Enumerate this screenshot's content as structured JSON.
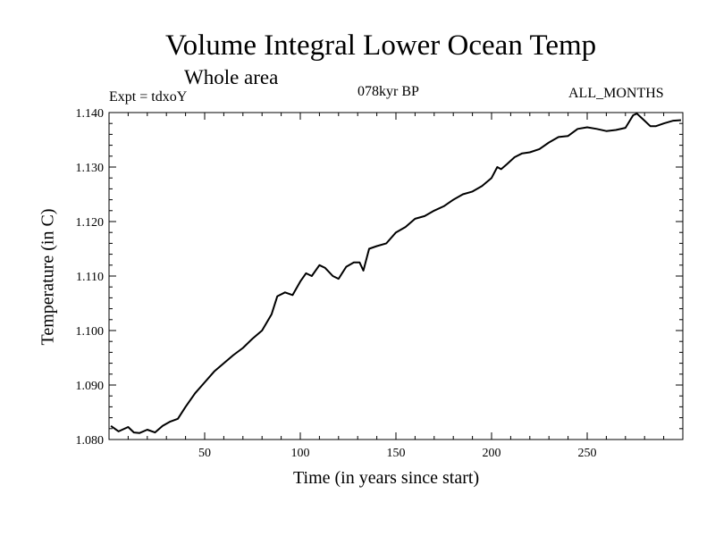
{
  "chart_data": {
    "type": "line",
    "title": "Volume Integral Lower Ocean Temp",
    "subtitle": "Whole area",
    "annotations": {
      "left": "Expt = tdxoY",
      "center": "078kyr BP",
      "right": "ALL_MONTHS"
    },
    "xlabel": "Time (in years since start)",
    "ylabel": "Temperature (in C)",
    "xlim": [
      0,
      300
    ],
    "ylim": [
      1.08,
      1.14
    ],
    "xticks": [
      50,
      100,
      150,
      200,
      250
    ],
    "xtick_labels": [
      "50",
      "100",
      "150",
      "200",
      "250"
    ],
    "yticks": [
      1.08,
      1.09,
      1.1,
      1.11,
      1.12,
      1.13,
      1.14
    ],
    "ytick_labels": [
      "1.080",
      "1.090",
      "1.100",
      "1.110",
      "1.120",
      "1.130",
      "1.140"
    ],
    "grid": false,
    "series": [
      {
        "x": [
          1,
          5,
          10,
          13,
          16,
          20,
          24,
          28,
          32,
          36,
          40,
          45,
          50,
          55,
          60,
          65,
          70,
          75,
          80,
          85,
          88,
          92,
          96,
          100,
          103,
          106,
          110,
          113,
          117,
          120,
          124,
          128,
          131,
          133,
          136,
          140,
          145,
          150,
          155,
          160,
          165,
          170,
          175,
          180,
          185,
          190,
          195,
          200,
          203,
          205,
          208,
          212,
          216,
          220,
          225,
          230,
          235,
          240,
          245,
          250,
          255,
          260,
          265,
          270,
          274,
          276,
          280,
          283,
          286,
          290,
          295,
          299
        ],
        "y": [
          1.0825,
          1.0815,
          1.0823,
          1.0813,
          1.0812,
          1.0818,
          1.0813,
          1.0825,
          1.0833,
          1.0838,
          1.086,
          1.0885,
          1.0905,
          1.0925,
          1.094,
          1.0955,
          1.0968,
          1.0985,
          1.1,
          1.103,
          1.1063,
          1.107,
          1.1065,
          1.109,
          1.1105,
          1.11,
          1.112,
          1.1115,
          1.11,
          1.1095,
          1.1117,
          1.1125,
          1.1125,
          1.111,
          1.115,
          1.1155,
          1.116,
          1.118,
          1.119,
          1.1205,
          1.121,
          1.122,
          1.1228,
          1.124,
          1.125,
          1.1255,
          1.1265,
          1.128,
          1.13,
          1.1296,
          1.1305,
          1.1318,
          1.1325,
          1.1327,
          1.1333,
          1.1345,
          1.1355,
          1.1357,
          1.137,
          1.1373,
          1.137,
          1.1366,
          1.1368,
          1.1372,
          1.1395,
          1.1398,
          1.1385,
          1.1375,
          1.1375,
          1.138,
          1.1385,
          1.1386
        ]
      }
    ]
  }
}
